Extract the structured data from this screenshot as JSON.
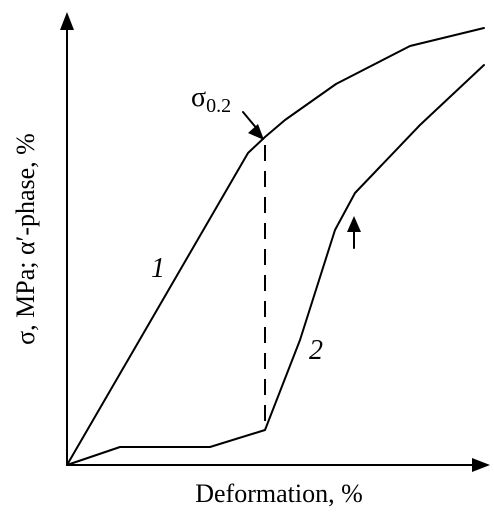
{
  "figure": {
    "y_axis_label": "σ, MPa; α′-phase, %",
    "x_axis_label": "Deformation, %",
    "sigma_label_main": "σ",
    "sigma_label_sub": "0.2",
    "curve_1_label": "1",
    "curve_2_label": "2"
  },
  "colors": {
    "line": "#000000",
    "background": "#ffffff"
  }
}
